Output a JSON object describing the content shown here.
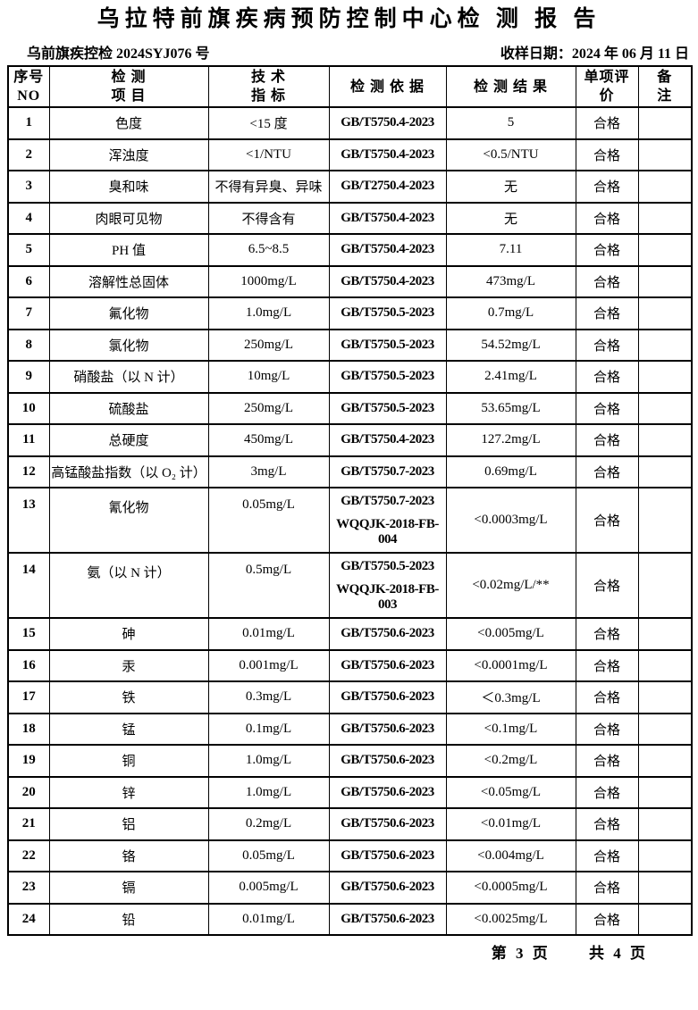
{
  "report": {
    "title": "乌拉特前旗疾病预防控制中心检 测 报 告",
    "document_no": "乌前旗疾控检 2024SYJ076 号",
    "sample_date": "收样日期：2024 年 06 月 11 日",
    "footer": {
      "page_label": "第 3 页",
      "total_label": "共 4 页"
    }
  },
  "table": {
    "headers": [
      {
        "name": "no",
        "lines": [
          "序号",
          "NO"
        ]
      },
      {
        "name": "item",
        "lines": [
          "检 测",
          "项 目"
        ]
      },
      {
        "name": "standard",
        "lines": [
          "技 术",
          "指 标"
        ]
      },
      {
        "name": "basis",
        "lines": [
          "检 测 依 据"
        ]
      },
      {
        "name": "result",
        "lines": [
          "检 测 结 果"
        ]
      },
      {
        "name": "evaluation",
        "lines": [
          "单项评",
          "价"
        ]
      },
      {
        "name": "remark",
        "lines": [
          "备",
          "注"
        ]
      }
    ],
    "rows": [
      {
        "no": "1",
        "item": "色度",
        "standard": "<15 度",
        "basis": [
          "GB/T5750.4-2023"
        ],
        "result": "5",
        "evaluation": "合格",
        "remark": ""
      },
      {
        "no": "2",
        "item": "浑浊度",
        "standard": "<1/NTU",
        "basis": [
          "GB/T5750.4-2023"
        ],
        "result": "<0.5/NTU",
        "evaluation": "合格",
        "remark": ""
      },
      {
        "no": "3",
        "item": "臭和味",
        "standard": "不得有异臭、异味",
        "basis": [
          "GB/T2750.4-2023"
        ],
        "result": "无",
        "evaluation": "合格",
        "remark": ""
      },
      {
        "no": "4",
        "item": "肉眼可见物",
        "standard": "不得含有",
        "basis": [
          "GB/T5750.4-2023"
        ],
        "result": "无",
        "evaluation": "合格",
        "remark": ""
      },
      {
        "no": "5",
        "item": "PH 值",
        "standard": "6.5~8.5",
        "basis": [
          "GB/T5750.4-2023"
        ],
        "result": "7.11",
        "evaluation": "合格",
        "remark": ""
      },
      {
        "no": "6",
        "item": "溶解性总固体",
        "standard": "1000mg/L",
        "basis": [
          "GB/T5750.4-2023"
        ],
        "result": "473mg/L",
        "evaluation": "合格",
        "remark": ""
      },
      {
        "no": "7",
        "item": "氟化物",
        "standard": "1.0mg/L",
        "basis": [
          "GB/T5750.5-2023"
        ],
        "result": "0.7mg/L",
        "evaluation": "合格",
        "remark": ""
      },
      {
        "no": "8",
        "item": "氯化物",
        "standard": "250mg/L",
        "basis": [
          "GB/T5750.5-2023"
        ],
        "result": "54.52mg/L",
        "evaluation": "合格",
        "remark": ""
      },
      {
        "no": "9",
        "item": "硝酸盐（以 N 计）",
        "standard": "10mg/L",
        "basis": [
          "GB/T5750.5-2023"
        ],
        "result": "2.41mg/L",
        "evaluation": "合格",
        "remark": ""
      },
      {
        "no": "10",
        "item": "硫酸盐",
        "standard": "250mg/L",
        "basis": [
          "GB/T5750.5-2023"
        ],
        "result": "53.65mg/L",
        "evaluation": "合格",
        "remark": ""
      },
      {
        "no": "11",
        "item": "总硬度",
        "standard": "450mg/L",
        "basis": [
          "GB/T5750.4-2023"
        ],
        "result": "127.2mg/L",
        "evaluation": "合格",
        "remark": ""
      },
      {
        "no": "12",
        "item": "高锰酸盐指数（以 O₂ 计）",
        "standard": "3mg/L",
        "basis": [
          "GB/T5750.7-2023"
        ],
        "result": "0.69mg/L",
        "evaluation": "合格",
        "remark": ""
      },
      {
        "no": "13",
        "item": "氰化物",
        "standard": "0.05mg/L",
        "basis": [
          "GB/T5750.7-2023",
          "WQQJK-2018-FB-004"
        ],
        "result": "<0.0003mg/L",
        "evaluation": "合格",
        "remark": ""
      },
      {
        "no": "14",
        "item": "氨（以 N 计）",
        "standard": "0.5mg/L",
        "basis": [
          "GB/T5750.5-2023",
          "WQQJK-2018-FB-003"
        ],
        "result": "<0.02mg/L/**",
        "evaluation": "合格",
        "remark": ""
      },
      {
        "no": "15",
        "item": "砷",
        "standard": "0.01mg/L",
        "basis": [
          "GB/T5750.6-2023"
        ],
        "result": "<0.005mg/L",
        "evaluation": "合格",
        "remark": ""
      },
      {
        "no": "16",
        "item": "汞",
        "standard": "0.001mg/L",
        "basis": [
          "GB/T5750.6-2023"
        ],
        "result": "<0.0001mg/L",
        "evaluation": "合格",
        "remark": ""
      },
      {
        "no": "17",
        "item": "铁",
        "standard": "0.3mg/L",
        "basis": [
          "GB/T5750.6-2023"
        ],
        "result": "＜0.3mg/L",
        "evaluation": "合格",
        "remark": ""
      },
      {
        "no": "18",
        "item": "锰",
        "standard": "0.1mg/L",
        "basis": [
          "GB/T5750.6-2023"
        ],
        "result": "<0.1mg/L",
        "evaluation": "合格",
        "remark": ""
      },
      {
        "no": "19",
        "item": "铜",
        "standard": "1.0mg/L",
        "basis": [
          "GB/T5750.6-2023"
        ],
        "result": "<0.2mg/L",
        "evaluation": "合格",
        "remark": ""
      },
      {
        "no": "20",
        "item": "锌",
        "standard": "1.0mg/L",
        "basis": [
          "GB/T5750.6-2023"
        ],
        "result": "<0.05mg/L",
        "evaluation": "合格",
        "remark": ""
      },
      {
        "no": "21",
        "item": "铝",
        "standard": "0.2mg/L",
        "basis": [
          "GB/T5750.6-2023"
        ],
        "result": "<0.01mg/L",
        "evaluation": "合格",
        "remark": ""
      },
      {
        "no": "22",
        "item": "铬",
        "standard": "0.05mg/L",
        "basis": [
          "GB/T5750.6-2023"
        ],
        "result": "<0.004mg/L",
        "evaluation": "合格",
        "remark": ""
      },
      {
        "no": "23",
        "item": "镉",
        "standard": "0.005mg/L",
        "basis": [
          "GB/T5750.6-2023"
        ],
        "result": "<0.0005mg/L",
        "evaluation": "合格",
        "remark": ""
      },
      {
        "no": "24",
        "item": "铅",
        "standard": "0.01mg/L",
        "basis": [
          "GB/T5750.6-2023"
        ],
        "result": "<0.0025mg/L",
        "evaluation": "合格",
        "remark": ""
      }
    ]
  }
}
